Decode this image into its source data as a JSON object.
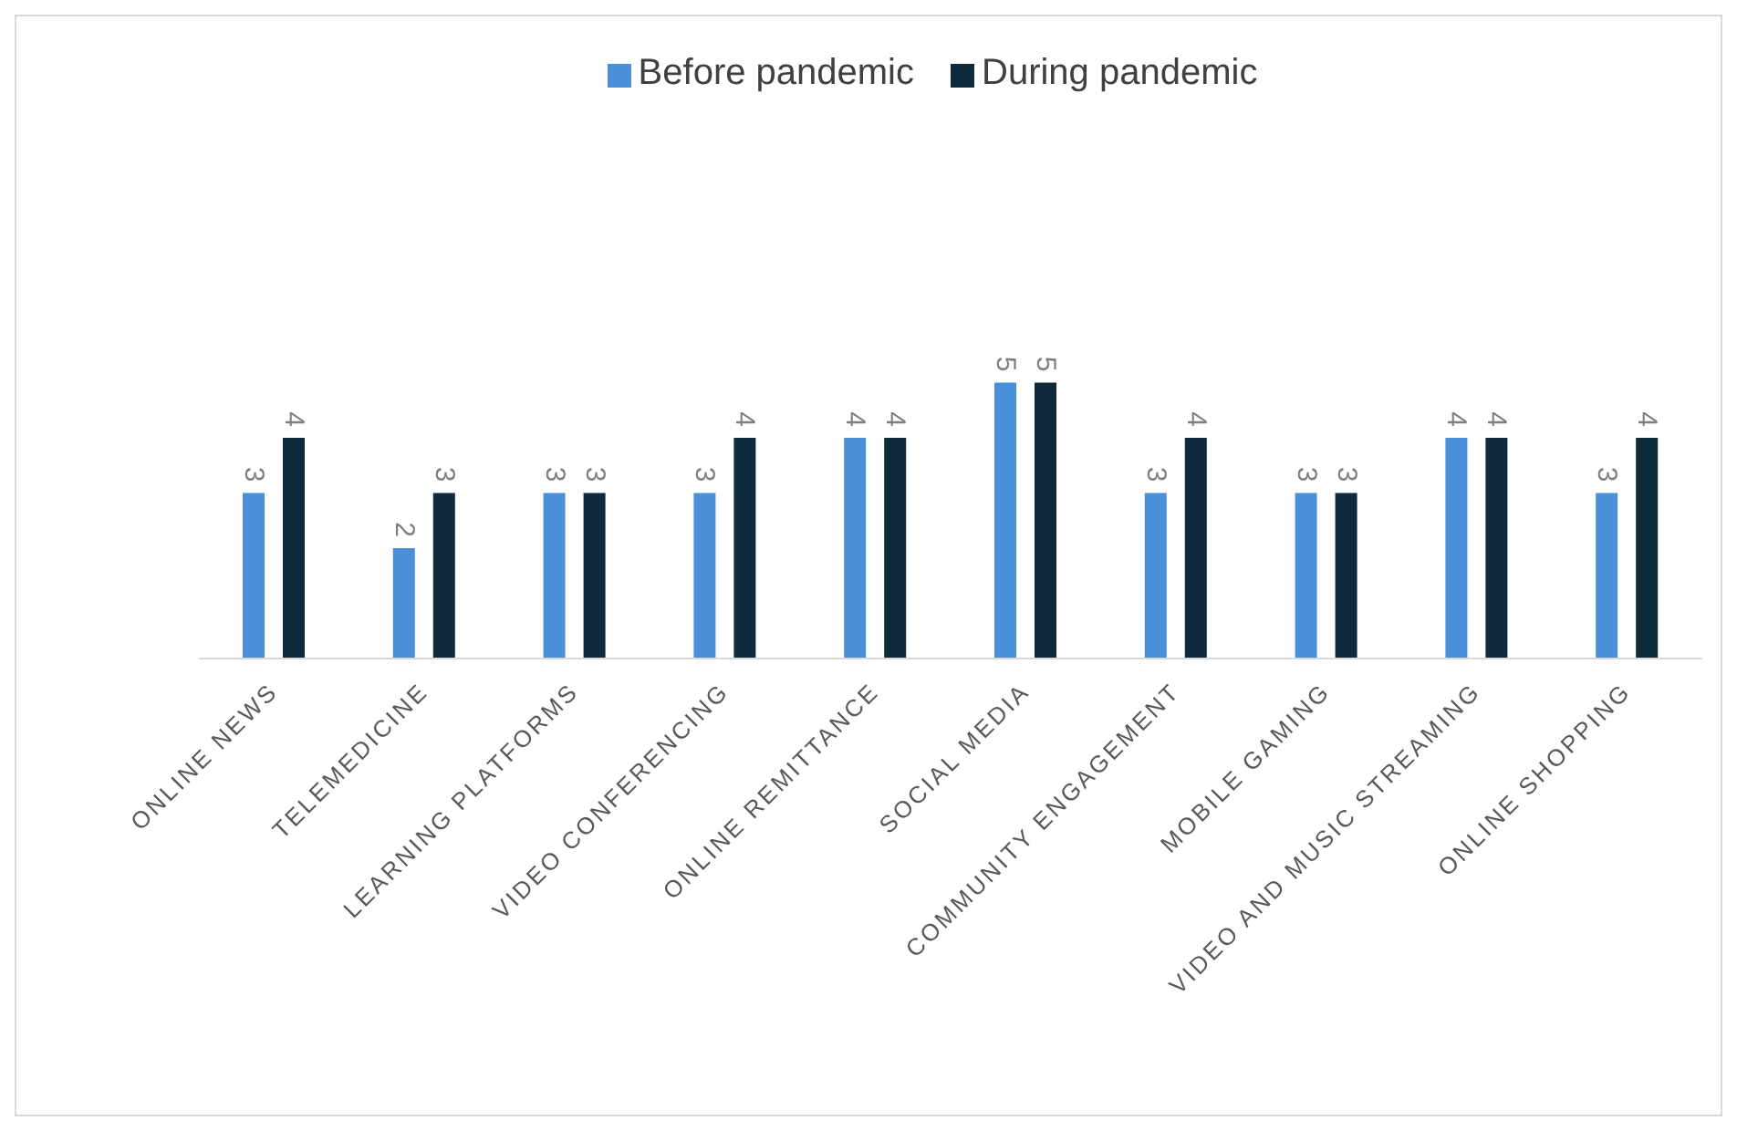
{
  "chart_data": {
    "type": "bar",
    "categories": [
      "ONLINE NEWS",
      "TELEMEDICINE",
      "LEARNING PLATFORMS",
      "VIDEO CONFERENCING",
      "ONLINE REMITTANCE",
      "SOCIAL MEDIA",
      "COMMUNITY ENGAGEMENT",
      "MOBILE GAMING",
      "VIDEO AND MUSIC STREAMING",
      "ONLINE SHOPPING"
    ],
    "series": [
      {
        "name": "Before pandemic",
        "color": "#4a90d9",
        "values": [
          3,
          2,
          3,
          3,
          4,
          5,
          3,
          3,
          4,
          3
        ]
      },
      {
        "name": "During pandemic",
        "color": "#0e2a3c",
        "values": [
          4,
          3,
          3,
          4,
          4,
          5,
          4,
          3,
          4,
          4
        ]
      }
    ],
    "data_labels": true,
    "legend": "top",
    "grid": false,
    "tick_labels": "x"
  }
}
